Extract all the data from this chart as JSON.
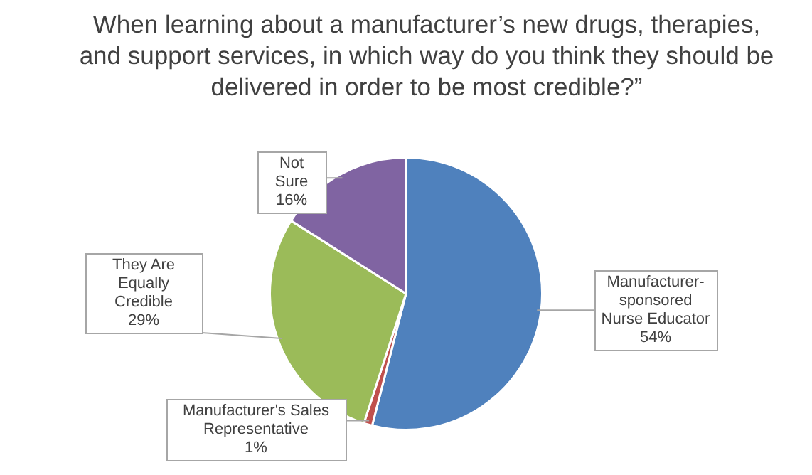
{
  "chart_data": {
    "type": "pie",
    "title": "When learning about a manufacturer’s new drugs, therapies, and support services, in which way do you think they should be delivered in order to be most credible?”",
    "categories": [
      "Manufacturer-sponsored Nurse Educator",
      "Manufacturer's Sales Representative",
      "They Are Equally Credible",
      "Not Sure"
    ],
    "values": [
      54,
      1,
      29,
      16
    ],
    "colors": [
      "#4f81bd",
      "#c0504d",
      "#9bbb59",
      "#8064a2"
    ],
    "value_labels": [
      "54%",
      "1%",
      "29%",
      "16%"
    ],
    "legend": false
  }
}
